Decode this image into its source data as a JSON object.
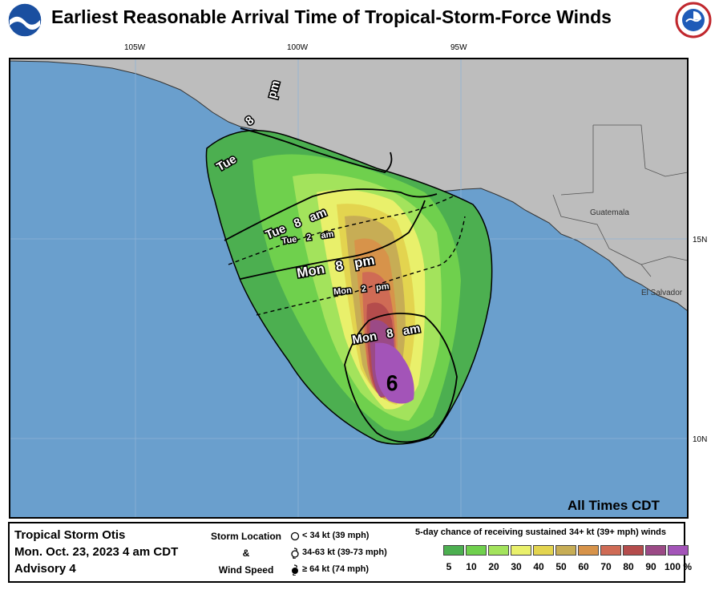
{
  "title": "Earliest Reasonable Arrival Time of Tropical-Storm-Force Winds",
  "logos": {
    "left": "noaa-logo",
    "right": "nws-logo"
  },
  "map": {
    "lon_labels": [
      "105W",
      "100W",
      "95W"
    ],
    "lat_labels": [
      "15N",
      "10N"
    ],
    "countries": [
      "Guatemala",
      "El Salvador"
    ],
    "colors": {
      "ocean": "#6a9fcd",
      "land": "#bdbdbd",
      "border": "#000000"
    },
    "time_labels": {
      "tue_8pm_a": "8",
      "tue_8pm_b": "pm",
      "tue_top": "Tue",
      "tue_8am": "Tue   8   am",
      "tue_2am": "Tue    2    am",
      "mon_8pm": "Mon   8   pm",
      "mon_2pm": "Mon    2    pm",
      "mon_8am": "Mon   8   am"
    },
    "all_times": "All Times CDT"
  },
  "legend": {
    "storm_name": "Tropical Storm Otis",
    "datetime": "Mon. Oct. 23, 2023  4 am CDT",
    "advisory": "Advisory 4",
    "location_label": [
      "Storm Location",
      "&",
      "Wind Speed"
    ],
    "location_items": [
      "< 34 kt (39 mph)",
      "34-63 kt (39-73 mph)",
      "≥ 64 kt (74 mph)"
    ],
    "prob_title": "5-day chance of receiving sustained 34+ kt (39+ mph) winds",
    "prob_levels": [
      "5",
      "10",
      "20",
      "30",
      "40",
      "50",
      "60",
      "70",
      "80",
      "90",
      "100 %"
    ],
    "prob_colors": [
      "#4caf50",
      "#6fd04d",
      "#a3e35c",
      "#e9f06b",
      "#e3d44f",
      "#c7ad55",
      "#d7934a",
      "#cf6b55",
      "#b44c4c",
      "#9b4a86",
      "#a354b8"
    ]
  }
}
